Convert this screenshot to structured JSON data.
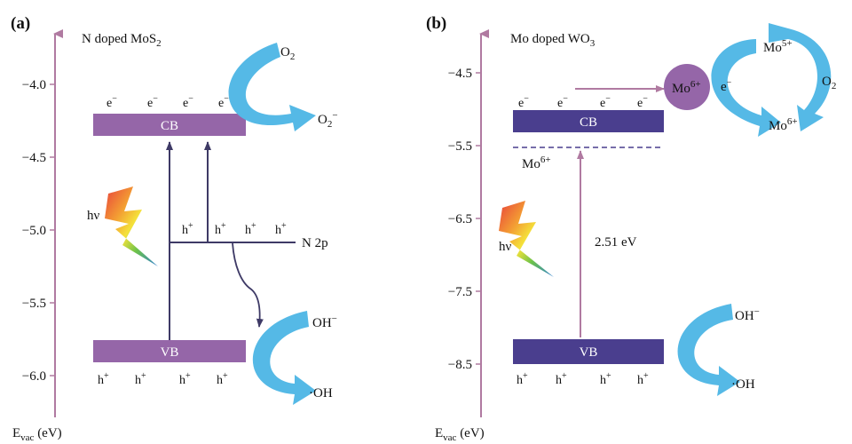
{
  "panel_a": {
    "label": "(a)",
    "title": {
      "main": "N doped MoS",
      "sub": "2"
    },
    "axis": {
      "ticks": [
        "−4.0",
        "−4.5",
        "−5.0",
        "−5.5",
        "−6.0"
      ],
      "ylabel": {
        "main": "E",
        "sub": "vac",
        "rest": " (eV)"
      }
    },
    "bands": {
      "cb": "CB",
      "vb": "VB",
      "level": "N 2p"
    },
    "carriers": {
      "e": "e",
      "h": "h"
    },
    "photon": "hν",
    "species": {
      "o2": {
        "main": "O",
        "sub": "2"
      },
      "superoxide": {
        "main": "O",
        "sub": "2",
        "sup": "−"
      },
      "hydroxide": {
        "main": "OH",
        "sup": "−"
      },
      "radical": "·OH"
    }
  },
  "panel_b": {
    "label": "(b)",
    "title": {
      "main": "Mo doped WO",
      "sub": "3"
    },
    "axis": {
      "ticks": [
        "−4.5",
        "−5.5",
        "−6.5",
        "−7.5",
        "−8.5"
      ],
      "ylabel": {
        "main": "E",
        "sub": "vac",
        "rest": " (eV)"
      }
    },
    "bands": {
      "cb": "CB",
      "vb": "VB"
    },
    "carriers": {
      "e": "e",
      "h": "h"
    },
    "photon": "hν",
    "gap": "2.51 eV",
    "dopant_level": {
      "main": "Mo",
      "sup": "6+"
    },
    "dopant_ion": {
      "main": "Mo",
      "sup": "6+"
    },
    "cycle": {
      "mo5": {
        "main": "Mo",
        "sup": "5+"
      },
      "mo6": {
        "main": "Mo",
        "sup": "6+"
      },
      "o2": {
        "main": "O",
        "sub": "2"
      }
    },
    "species": {
      "hydroxide": {
        "main": "OH",
        "sup": "−"
      },
      "radical": "·OH"
    }
  },
  "colors": {
    "axis": "#b07aa1",
    "band_a": "#9566a8",
    "band_b": "#4a3e8e",
    "arrow": "#55b9e6",
    "ion": "#9566a8"
  }
}
